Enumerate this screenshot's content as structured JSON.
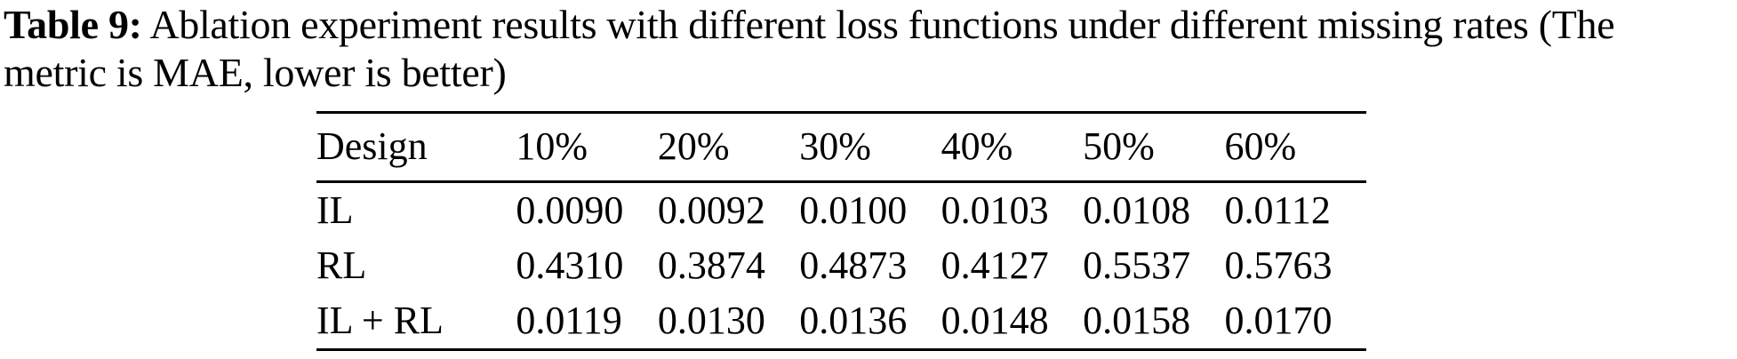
{
  "caption": {
    "label": "Table 9:",
    "line1_rest": " Ablation experiment results with different loss functions under different missing rates (The",
    "line2": "metric is MAE, lower is better)"
  },
  "table": {
    "columns": [
      "Design",
      "10%",
      "20%",
      "30%",
      "40%",
      "50%",
      "60%"
    ],
    "rows": [
      {
        "design": "IL",
        "values": [
          "0.0090",
          "0.0092",
          "0.0100",
          "0.0103",
          "0.0108",
          "0.0112"
        ]
      },
      {
        "design": "RL",
        "values": [
          "0.4310",
          "0.3874",
          "0.4873",
          "0.4127",
          "0.5537",
          "0.5763"
        ]
      },
      {
        "design": "IL + RL",
        "values": [
          "0.0119",
          "0.0130",
          "0.0136",
          "0.0148",
          "0.0158",
          "0.0170"
        ]
      }
    ]
  },
  "colors": {
    "text": "#000000",
    "background": "#ffffff",
    "rule": "#000000"
  }
}
